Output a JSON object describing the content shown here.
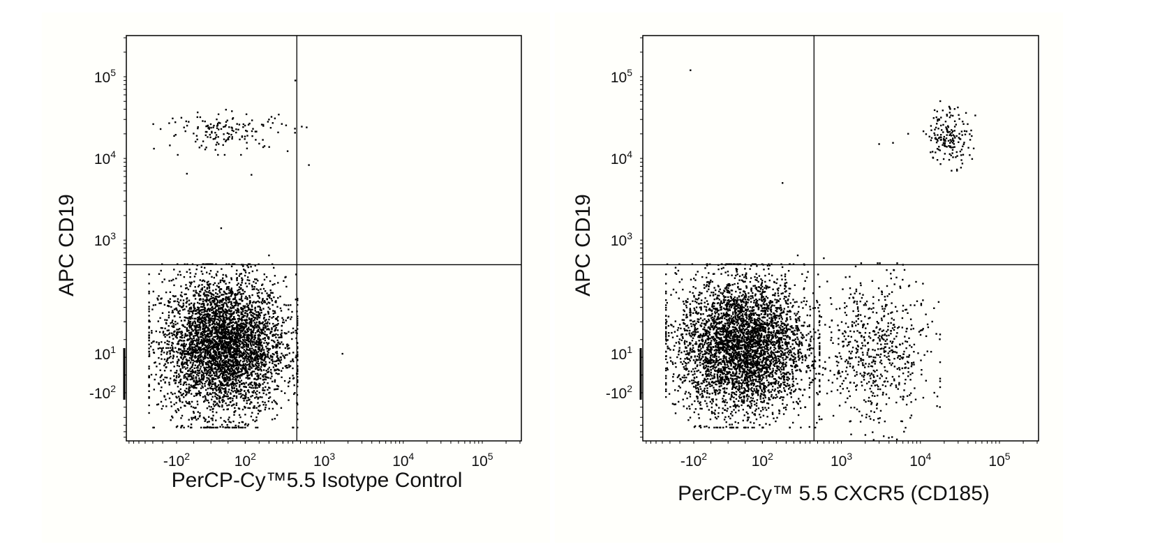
{
  "chart_data": [
    {
      "type": "scatter",
      "title": "",
      "xlabel": "PerCP-Cy™5.5  Isotype Control",
      "ylabel": "APC  CD19",
      "x_scale": "biexponential",
      "y_scale": "biexponential",
      "x_ticks": [
        {
          "value": -100,
          "base": "-10",
          "exp": "2"
        },
        {
          "value": 100,
          "base": "10",
          "exp": "2"
        },
        {
          "value": 1000,
          "base": "10",
          "exp": "3"
        },
        {
          "value": 10000,
          "base": "10",
          "exp": "4"
        },
        {
          "value": 100000,
          "base": "10",
          "exp": "5"
        }
      ],
      "y_ticks": [
        {
          "value": -100,
          "base": "-10",
          "exp": "2"
        },
        {
          "value": 10,
          "base": "10",
          "exp": "1"
        },
        {
          "value": 1000,
          "base": "10",
          "exp": "3"
        },
        {
          "value": 10000,
          "base": "10",
          "exp": "4"
        },
        {
          "value": 100000,
          "base": "10",
          "exp": "5"
        }
      ],
      "quadrant_gate": {
        "x": 450,
        "y": 500
      },
      "populations": [
        {
          "description": "CD19- main cluster",
          "x_range": [
            -170,
            350
          ],
          "y_range": [
            -200,
            380
          ],
          "count": 4200
        },
        {
          "description": "CD19+ B cells",
          "x_range": [
            -150,
            420
          ],
          "y_range": [
            12000,
            38000
          ],
          "count": 150
        }
      ],
      "outlier_points": [
        {
          "x": 600,
          "y": 24000
        },
        {
          "x": 520,
          "y": 24500
        },
        {
          "x": 640,
          "y": 8300
        },
        {
          "x": 30,
          "y": 1400
        },
        {
          "x": 200,
          "y": 650
        },
        {
          "x": 430,
          "y": 90000
        },
        {
          "x": 1700,
          "y": 10
        },
        {
          "x": 120,
          "y": 6300
        },
        {
          "x": -70,
          "y": 6500
        }
      ]
    },
    {
      "type": "scatter",
      "title": "",
      "xlabel": "PerCP-Cy™ 5.5 CXCR5 (CD185)",
      "ylabel": "APC  CD19",
      "x_scale": "biexponential",
      "y_scale": "biexponential",
      "x_ticks": [
        {
          "value": -100,
          "base": "-10",
          "exp": "2"
        },
        {
          "value": 100,
          "base": "10",
          "exp": "2"
        },
        {
          "value": 1000,
          "base": "10",
          "exp": "3"
        },
        {
          "value": 10000,
          "base": "10",
          "exp": "4"
        },
        {
          "value": 100000,
          "base": "10",
          "exp": "5"
        }
      ],
      "y_ticks": [
        {
          "value": -100,
          "base": "-10",
          "exp": "2"
        },
        {
          "value": 10,
          "base": "10",
          "exp": "1"
        },
        {
          "value": 1000,
          "base": "10",
          "exp": "3"
        },
        {
          "value": 10000,
          "base": "10",
          "exp": "4"
        },
        {
          "value": 100000,
          "base": "10",
          "exp": "5"
        }
      ],
      "quadrant_gate": {
        "x": 450,
        "y": 500
      },
      "populations": [
        {
          "description": "CXCR5- CD19- cluster",
          "x_range": [
            -170,
            400
          ],
          "y_range": [
            -200,
            380
          ],
          "count": 4000
        },
        {
          "description": "CXCR5+ CD19- cells",
          "x_range": [
            500,
            14000
          ],
          "y_range": [
            -300,
            380
          ],
          "count": 650
        },
        {
          "description": "CXCR5+ CD19+ B cells",
          "x_range": [
            12000,
            45000
          ],
          "y_range": [
            8000,
            45000
          ],
          "count": 170
        }
      ],
      "outlier_points": [
        {
          "x": -110,
          "y": 120000
        },
        {
          "x": 180,
          "y": 5000
        },
        {
          "x": 280,
          "y": 650
        },
        {
          "x": 600,
          "y": 600
        },
        {
          "x": 3000,
          "y": 15000
        },
        {
          "x": 4500,
          "y": 15500
        },
        {
          "x": 7000,
          "y": 20000
        },
        {
          "x": 15000,
          "y": -100
        }
      ]
    }
  ]
}
